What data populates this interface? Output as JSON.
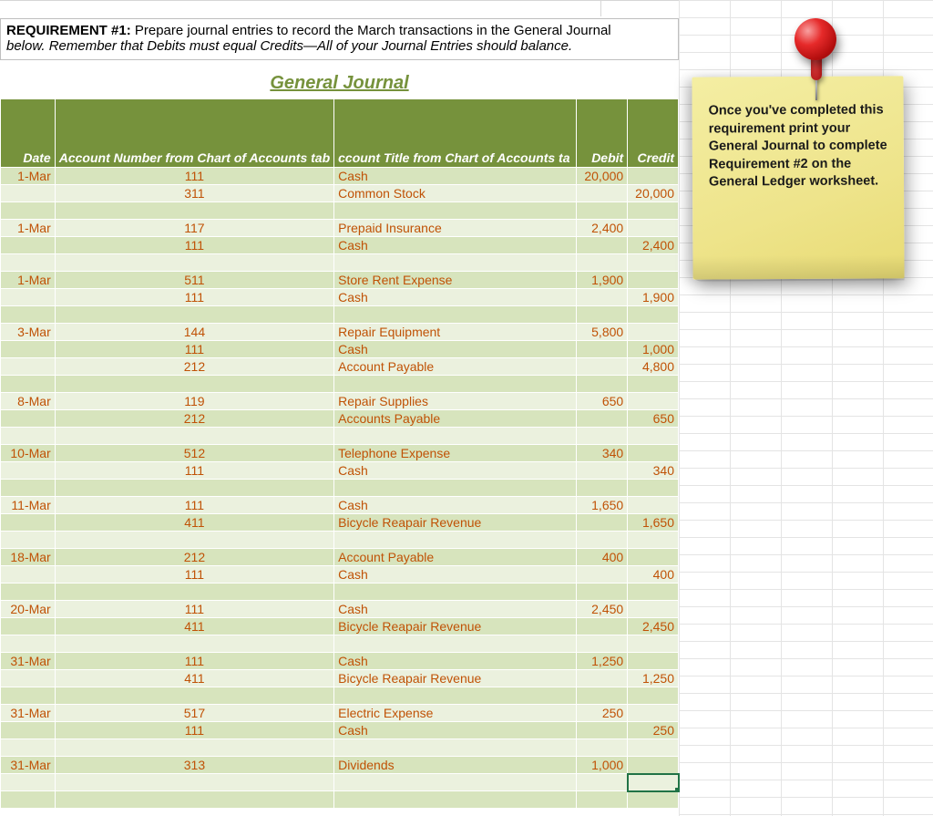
{
  "requirement": {
    "label": "REQUIREMENT #1:",
    "line1_rest": " Prepare journal entries to record the March transactions in the General Journal",
    "line2": "below. Remember that Debits must equal Credits—All of your Journal Entries should balance."
  },
  "journal_title": "General Journal",
  "headers": {
    "date": "Date",
    "acct": "Account Number from Chart of Accounts tab",
    "title": "ccount Title from Chart of Accounts ta",
    "debit": "Debit",
    "credit": "Credit"
  },
  "rows": [
    {
      "date": "1-Mar",
      "acct": "111",
      "title": "Cash",
      "debit": "20,000",
      "credit": "",
      "band": "e"
    },
    {
      "date": "",
      "acct": "311",
      "title": "Common Stock",
      "debit": "",
      "credit": "20,000",
      "band": "o"
    },
    {
      "date": "",
      "acct": "",
      "title": "",
      "debit": "",
      "credit": "",
      "band": "e"
    },
    {
      "date": "1-Mar",
      "acct": "117",
      "title": "Prepaid Insurance",
      "debit": "2,400",
      "credit": "",
      "band": "o"
    },
    {
      "date": "",
      "acct": "111",
      "title": "Cash",
      "debit": "",
      "credit": "2,400",
      "band": "e"
    },
    {
      "date": "",
      "acct": "",
      "title": "",
      "debit": "",
      "credit": "",
      "band": "o"
    },
    {
      "date": "1-Mar",
      "acct": "511",
      "title": "Store Rent Expense",
      "debit": "1,900",
      "credit": "",
      "band": "e"
    },
    {
      "date": "",
      "acct": "111",
      "title": "Cash",
      "debit": "",
      "credit": "1,900",
      "band": "o"
    },
    {
      "date": "",
      "acct": "",
      "title": "",
      "debit": "",
      "credit": "",
      "band": "e"
    },
    {
      "date": "3-Mar",
      "acct": "144",
      "title": "Repair Equipment",
      "debit": "5,800",
      "credit": "",
      "band": "o"
    },
    {
      "date": "",
      "acct": "111",
      "title": "Cash",
      "debit": "",
      "credit": "1,000",
      "band": "e"
    },
    {
      "date": "",
      "acct": "212",
      "title": "Account Payable",
      "debit": "",
      "credit": "4,800",
      "band": "o"
    },
    {
      "date": "",
      "acct": "",
      "title": "",
      "debit": "",
      "credit": "",
      "band": "e"
    },
    {
      "date": "8-Mar",
      "acct": "119",
      "title": "Repair Supplies",
      "debit": "650",
      "credit": "",
      "band": "o"
    },
    {
      "date": "",
      "acct": "212",
      "title": "Accounts Payable",
      "debit": "",
      "credit": "650",
      "band": "e"
    },
    {
      "date": "",
      "acct": "",
      "title": "",
      "debit": "",
      "credit": "",
      "band": "o"
    },
    {
      "date": "10-Mar",
      "acct": "512",
      "title": "Telephone Expense",
      "debit": "340",
      "credit": "",
      "band": "e"
    },
    {
      "date": "",
      "acct": "111",
      "title": "Cash",
      "debit": "",
      "credit": "340",
      "band": "o"
    },
    {
      "date": "",
      "acct": "",
      "title": "",
      "debit": "",
      "credit": "",
      "band": "e"
    },
    {
      "date": "11-Mar",
      "acct": "111",
      "title": "Cash",
      "debit": "1,650",
      "credit": "",
      "band": "o"
    },
    {
      "date": "",
      "acct": "411",
      "title": "Bicycle Reapair Revenue",
      "debit": "",
      "credit": "1,650",
      "band": "e"
    },
    {
      "date": "",
      "acct": "",
      "title": "",
      "debit": "",
      "credit": "",
      "band": "o"
    },
    {
      "date": "18-Mar",
      "acct": "212",
      "title": "Account Payable",
      "debit": "400",
      "credit": "",
      "band": "e"
    },
    {
      "date": "",
      "acct": "111",
      "title": "Cash",
      "debit": "",
      "credit": "400",
      "band": "o"
    },
    {
      "date": "",
      "acct": "",
      "title": "",
      "debit": "",
      "credit": "",
      "band": "e"
    },
    {
      "date": "20-Mar",
      "acct": "111",
      "title": "Cash",
      "debit": "2,450",
      "credit": "",
      "band": "o"
    },
    {
      "date": "",
      "acct": "411",
      "title": "Bicycle Reapair Revenue",
      "debit": "",
      "credit": "2,450",
      "band": "e"
    },
    {
      "date": "",
      "acct": "",
      "title": "",
      "debit": "",
      "credit": "",
      "band": "o"
    },
    {
      "date": "31-Mar",
      "acct": "111",
      "title": "Cash",
      "debit": "1,250",
      "credit": "",
      "band": "e"
    },
    {
      "date": "",
      "acct": "411",
      "title": "Bicycle Reapair Revenue",
      "debit": "",
      "credit": "1,250",
      "band": "o"
    },
    {
      "date": "",
      "acct": "",
      "title": "",
      "debit": "",
      "credit": "",
      "band": "e"
    },
    {
      "date": "31-Mar",
      "acct": "517",
      "title": "Electric Expense",
      "debit": "250",
      "credit": "",
      "band": "o"
    },
    {
      "date": "",
      "acct": "111",
      "title": "Cash",
      "debit": "",
      "credit": "250",
      "band": "e"
    },
    {
      "date": "",
      "acct": "",
      "title": "",
      "debit": "",
      "credit": "",
      "band": "o"
    },
    {
      "date": "31-Mar",
      "acct": "313",
      "title": "Dividends",
      "debit": "1,000",
      "credit": "",
      "band": "e"
    },
    {
      "date": "",
      "acct": "",
      "title": "",
      "debit": "",
      "credit": "",
      "band": "o",
      "selected": true
    },
    {
      "date": "",
      "acct": "",
      "title": "",
      "debit": "",
      "credit": "",
      "band": "e"
    }
  ],
  "sticky_note": "Once you've completed this requirement print your General Journal to complete Requirement #2 on the General Ledger worksheet.",
  "colors": {
    "header_bg": "#76923c",
    "row_even": "#d7e4bd",
    "row_odd": "#ebf1de",
    "value_text": "#c05206",
    "selection": "#217346"
  }
}
